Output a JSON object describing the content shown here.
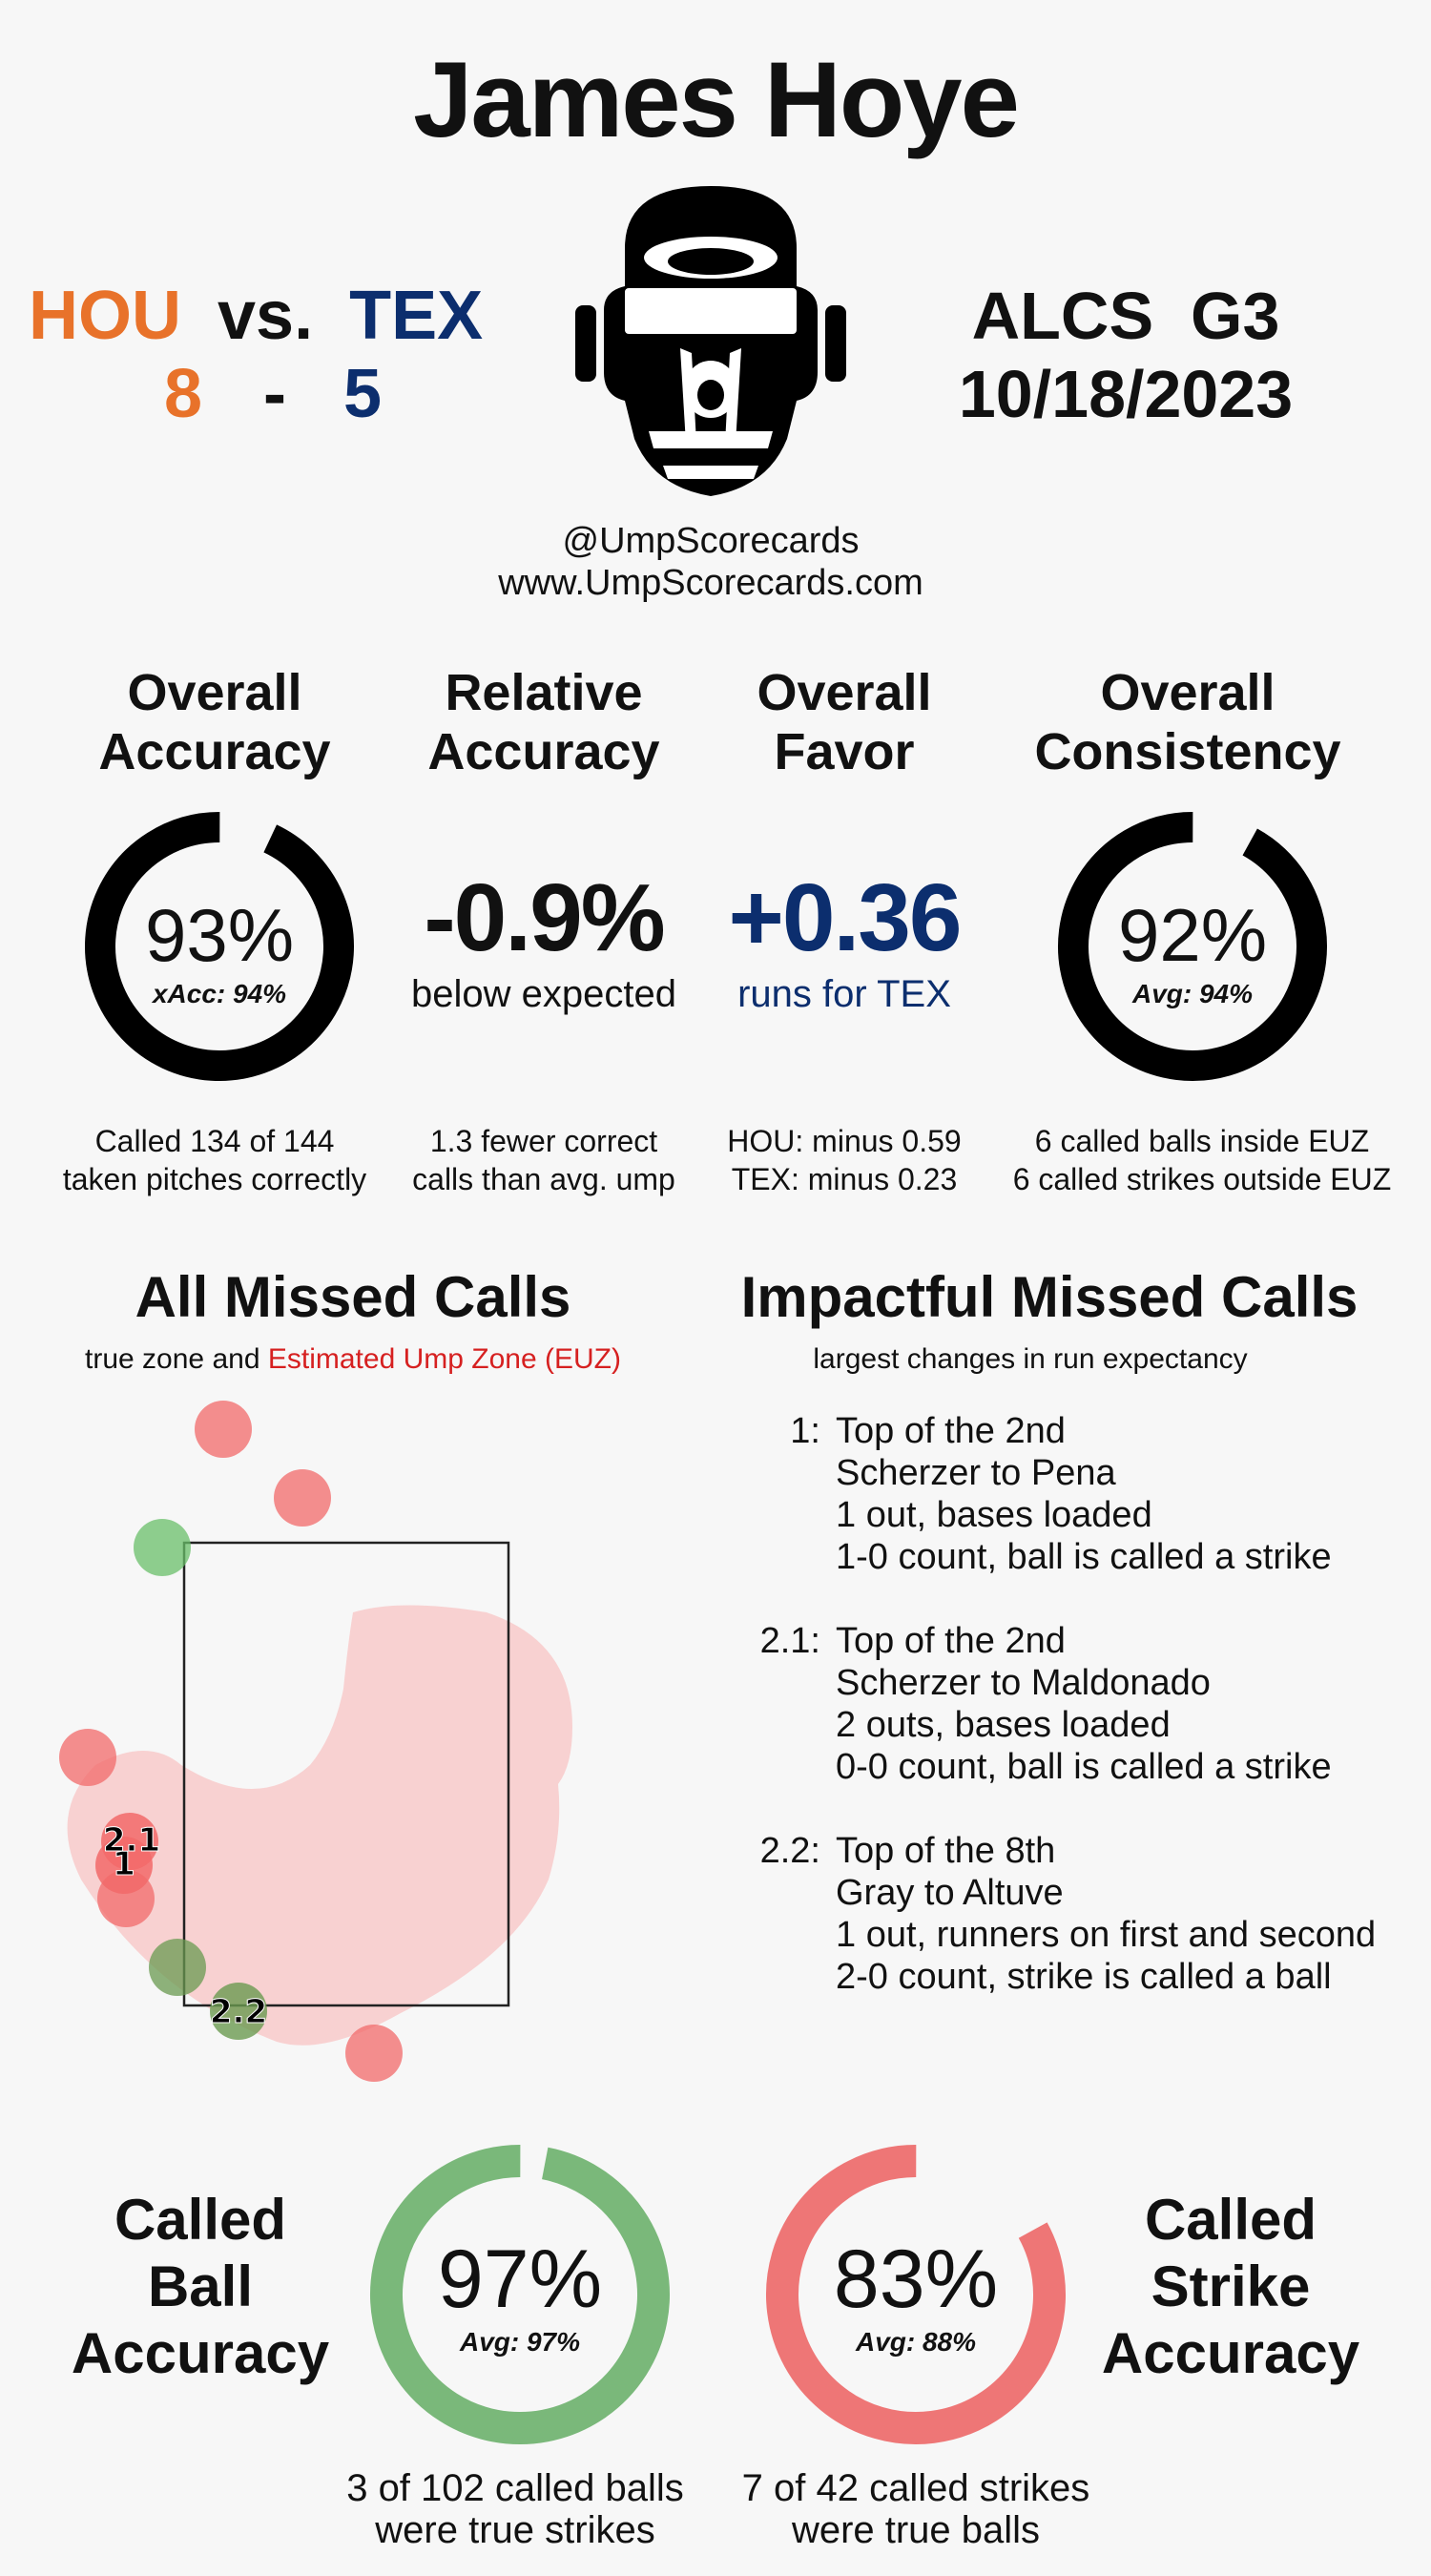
{
  "header": {
    "umpire_name": "James Hoye",
    "away_team": "HOU",
    "vs": "vs.",
    "home_team": "TEX",
    "away_score": "8",
    "dash": "-",
    "home_score": "5",
    "game": "ALCS  G3",
    "date": "10/18/2023",
    "handle": "@UmpScorecards",
    "website": "www.UmpScorecards.com",
    "colors": {
      "hou": "#e8722a",
      "tex": "#0c2e6e"
    }
  },
  "stats": {
    "overall_accuracy": {
      "title_line1": "Overall",
      "title_line2": "Accuracy",
      "value": "93%",
      "sub": "xAcc: 94%",
      "fill": 0.93,
      "foot_line1": "Called 134 of 144",
      "foot_line2": "taken pitches correctly"
    },
    "relative_accuracy": {
      "title_line1": "Relative",
      "title_line2": "Accuracy",
      "value": "-0.9%",
      "sub": "below expected",
      "foot_line1": "1.3 fewer correct",
      "foot_line2": "calls than avg. ump"
    },
    "overall_favor": {
      "title_line1": "Overall",
      "title_line2": "Favor",
      "value": "+0.36",
      "sub": "runs for TEX",
      "foot_line1": "HOU: minus 0.59",
      "foot_line2": "TEX: minus 0.23"
    },
    "overall_consistency": {
      "title_line1": "Overall",
      "title_line2": "Consistency",
      "value": "92%",
      "sub": "Avg: 94%",
      "fill": 0.92,
      "foot_line1": "6 called balls inside EUZ",
      "foot_line2": "6 called strikes outside EUZ"
    }
  },
  "missed_calls": {
    "title": "All Missed Calls",
    "sub_prefix": "true zone and",
    "sub_euz": "Estimated Ump Zone (EUZ)",
    "labels": [
      "2.1",
      "1",
      "2.2"
    ]
  },
  "impactful": {
    "title": "Impactful Missed Calls",
    "sub": "largest changes in run expectancy",
    "calls": [
      {
        "num": "1:",
        "line1": "Top of the 2nd",
        "line2": "Scherzer to Pena",
        "line3": "1 out, bases loaded",
        "line4": "1-0 count, ball is called a strike"
      },
      {
        "num": "2.1:",
        "line1": "Top of the 2nd",
        "line2": "Scherzer to Maldonado",
        "line3": "2 outs, bases loaded",
        "line4": "0-0 count, ball is called a strike"
      },
      {
        "num": "2.2:",
        "line1": "Top of the 8th",
        "line2": "Gray to Altuve",
        "line3": "1 out, runners on first and second",
        "line4": "2-0 count, strike is called a ball"
      }
    ]
  },
  "called_ball": {
    "line1": "Called",
    "line2": "Ball",
    "line3": "Accuracy",
    "value": "97%",
    "sub": "Avg: 97%",
    "fill": 0.97,
    "color": "#7ab87a",
    "foot_line1": "3 of 102 called balls",
    "foot_line2": "were true strikes"
  },
  "called_strike": {
    "line1": "Called",
    "line2": "Strike",
    "line3": "Accuracy",
    "value": "83%",
    "sub": "Avg: 88%",
    "fill": 0.83,
    "color": "#ee7676",
    "foot_line1": "7 of 42 called strikes",
    "foot_line2": "were true balls"
  }
}
